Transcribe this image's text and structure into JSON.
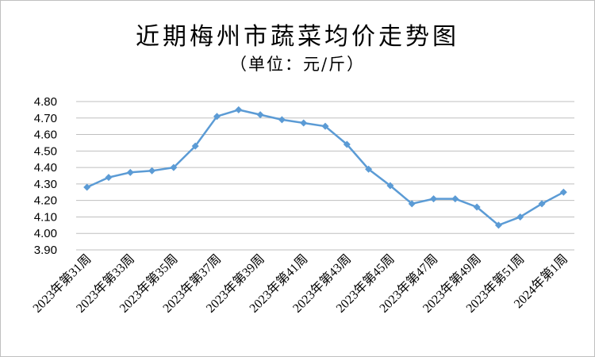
{
  "chart_data": {
    "type": "line",
    "title": "近期梅州市蔬菜均价走势图",
    "subtitle": "（单位：元/斤）",
    "xlabel": "",
    "ylabel": "",
    "ylim": [
      3.9,
      4.8
    ],
    "yticks": [
      "3.90",
      "4.00",
      "4.10",
      "4.20",
      "4.30",
      "4.40",
      "4.50",
      "4.60",
      "4.70",
      "4.80"
    ],
    "grid": true,
    "legend": "none",
    "line_color": "#5b9bd5",
    "categories": [
      "2023年第31周",
      "2023年第32周",
      "2023年第33周",
      "2023年第34周",
      "2023年第35周",
      "2023年第36周",
      "2023年第37周",
      "2023年第38周",
      "2023年第39周",
      "2023年第40周",
      "2023年第41周",
      "2023年第42周",
      "2023年第43周",
      "2023年第44周",
      "2023年第45周",
      "2023年第46周",
      "2023年第47周",
      "2023年第48周",
      "2023年第49周",
      "2023年第50周",
      "2023年第51周",
      "2023年第52周",
      "2024年第1周"
    ],
    "xtick_labels": [
      "2023年第31周",
      "2023年第33周",
      "2023年第35周",
      "2023年第37周",
      "2023年第39周",
      "2023年第41周",
      "2023年第43周",
      "2023年第45周",
      "2023年第47周",
      "2023年第49周",
      "2023年第51周",
      "2024年第1周"
    ],
    "values": [
      4.28,
      4.34,
      4.37,
      4.38,
      4.4,
      4.53,
      4.71,
      4.75,
      4.72,
      4.69,
      4.67,
      4.65,
      4.54,
      4.39,
      4.29,
      4.18,
      4.21,
      4.21,
      4.16,
      4.05,
      4.1,
      4.18,
      4.25
    ]
  }
}
